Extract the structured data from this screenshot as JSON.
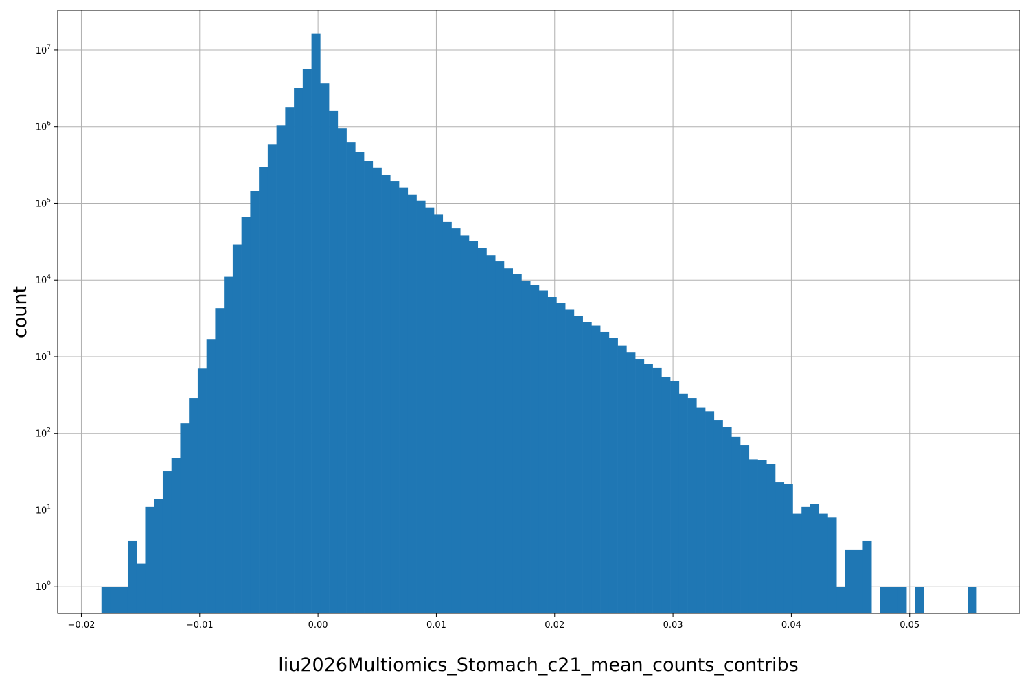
{
  "chart_data": {
    "type": "histogram",
    "title": "",
    "xlabel": "liu2026Multiomics_Stomach_c21_mean_counts_contribs",
    "ylabel": "count",
    "yscale": "log",
    "grid": true,
    "xlim": [
      -0.022,
      0.0593
    ],
    "ylim": [
      0.45,
      33000000
    ],
    "bar_color": "#1f77b4",
    "grid_color": "#b0b0b0",
    "bin_start": -0.0183,
    "bin_width": 0.0007395,
    "bin_counts": [
      1,
      1,
      1,
      4,
      2,
      11,
      14,
      32,
      48,
      135,
      290,
      700,
      1700,
      4300,
      11000,
      29000,
      66000,
      145000,
      300000,
      590000,
      1050000,
      1800000,
      3200000,
      5700000,
      16500000,
      3700000,
      1600000,
      950000,
      630000,
      470000,
      360000,
      290000,
      235000,
      195000,
      160000,
      130000,
      108000,
      88000,
      72000,
      58000,
      47000,
      38000,
      32000,
      26000,
      21000,
      17500,
      14200,
      12000,
      9800,
      8600,
      7300,
      6000,
      5000,
      4100,
      3400,
      2800,
      2550,
      2100,
      1750,
      1400,
      1150,
      920,
      800,
      720,
      550,
      480,
      330,
      290,
      215,
      195,
      150,
      120,
      90,
      70,
      46,
      45,
      40,
      23,
      22,
      9,
      11,
      12,
      9,
      8,
      1,
      3,
      3,
      4,
      0,
      1,
      1,
      1,
      0,
      1,
      0,
      0,
      0,
      0,
      0,
      1
    ],
    "xticks": [
      {
        "value": -0.02,
        "label": "−0.02"
      },
      {
        "value": -0.01,
        "label": "−0.01"
      },
      {
        "value": 0.0,
        "label": "0.00"
      },
      {
        "value": 0.01,
        "label": "0.01"
      },
      {
        "value": 0.02,
        "label": "0.02"
      },
      {
        "value": 0.03,
        "label": "0.03"
      },
      {
        "value": 0.04,
        "label": "0.04"
      },
      {
        "value": 0.05,
        "label": "0.05"
      }
    ],
    "yticks": [
      {
        "value": 1,
        "base": "10",
        "exp": "0"
      },
      {
        "value": 10,
        "base": "10",
        "exp": "1"
      },
      {
        "value": 100,
        "base": "10",
        "exp": "2"
      },
      {
        "value": 1000,
        "base": "10",
        "exp": "3"
      },
      {
        "value": 10000,
        "base": "10",
        "exp": "4"
      },
      {
        "value": 100000,
        "base": "10",
        "exp": "5"
      },
      {
        "value": 1000000,
        "base": "10",
        "exp": "6"
      },
      {
        "value": 10000000,
        "base": "10",
        "exp": "7"
      }
    ]
  }
}
